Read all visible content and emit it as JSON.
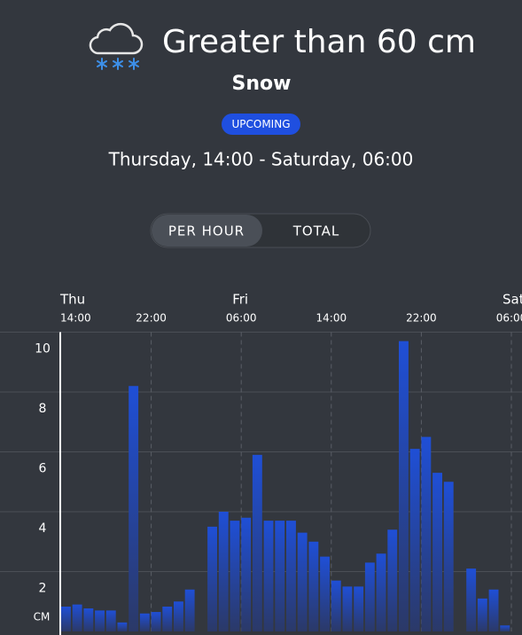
{
  "header": {
    "title": "Greater than 60 cm",
    "subtitle": "Snow",
    "badge": "UPCOMING",
    "period": "Thursday, 14:00 - Saturday, 06:00"
  },
  "toggle": {
    "options": [
      "PER HOUR",
      "TOTAL"
    ],
    "selected": 0
  },
  "chart_data": {
    "type": "bar",
    "categories": [
      "14:00",
      null,
      null,
      null,
      null,
      null,
      null,
      null,
      "22:00",
      null,
      null,
      null,
      null,
      null,
      null,
      null,
      "06:00",
      null,
      null,
      null,
      null,
      null,
      null,
      null,
      "14:00",
      null,
      null,
      null,
      null,
      null,
      null,
      null,
      "22:00",
      null,
      null,
      null,
      null,
      null,
      null,
      null,
      "06:00"
    ],
    "day_labels": [
      "Thu",
      null,
      null,
      null,
      null,
      null,
      null,
      null,
      null,
      null,
      null,
      null,
      null,
      null,
      null,
      null,
      "Fri",
      null,
      null,
      null,
      null,
      null,
      null,
      null,
      null,
      null,
      null,
      null,
      null,
      null,
      null,
      null,
      null,
      null,
      null,
      null,
      null,
      null,
      null,
      null,
      "Sat"
    ],
    "values": [
      0.83,
      0.9,
      0.77,
      0.7,
      0.7,
      0.3,
      8.2,
      0.6,
      0.65,
      0.83,
      1.0,
      1.4,
      0,
      3.5,
      4.0,
      3.7,
      3.8,
      5.9,
      3.7,
      3.7,
      3.7,
      3.3,
      3.0,
      2.5,
      1.7,
      1.5,
      1.5,
      2.3,
      2.6,
      3.4,
      9.7,
      6.1,
      6.5,
      5.3,
      5.0,
      0,
      2.1,
      1.1,
      1.4,
      0.2,
      0
    ],
    "color": "#1f4fd6",
    "ylim": [
      0,
      10
    ],
    "yticks": [
      2,
      4,
      6,
      8,
      10
    ],
    "y_unit": "CM",
    "grid": true
  }
}
